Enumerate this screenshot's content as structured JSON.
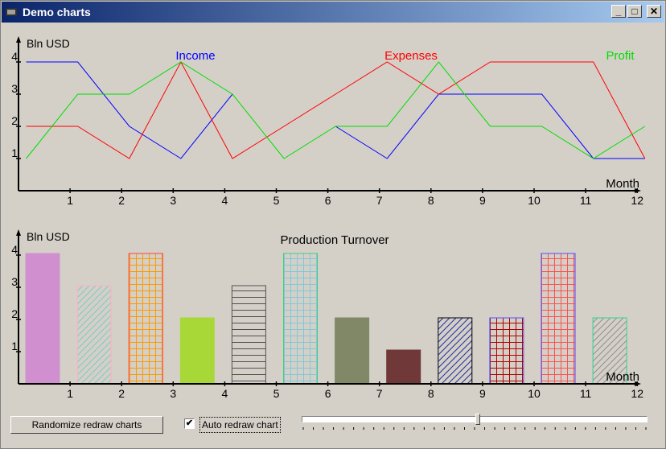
{
  "window": {
    "title": "Demo charts",
    "buttons": {
      "minimize": "_",
      "maximize": "□",
      "close": "✕"
    }
  },
  "controls": {
    "randomize_label": "Randomize redraw charts",
    "auto_redraw_label": "Auto redraw chart",
    "auto_redraw_checked": true,
    "check_mark": "✔",
    "slider_value": 0.51
  },
  "chart_data": [
    {
      "type": "line",
      "ylabel": "Bln USD",
      "xlabel": "Month",
      "x": [
        0,
        1,
        2,
        3,
        4,
        5,
        6,
        7,
        8,
        9,
        10,
        11,
        12
      ],
      "x_ticks": [
        1,
        2,
        3,
        4,
        5,
        6,
        7,
        8,
        9,
        10,
        11,
        12
      ],
      "y_ticks": [
        1,
        2,
        3,
        4
      ],
      "ylim": [
        0,
        4.8
      ],
      "xlim": [
        0,
        12
      ],
      "series": [
        {
          "name": "Income",
          "color": "#0000ff",
          "values": [
            4,
            4,
            2,
            1,
            3,
            null,
            2,
            1,
            3,
            3,
            3,
            1,
            1
          ]
        },
        {
          "name": "Expenses",
          "color": "#ff0000",
          "values": [
            2,
            2,
            1,
            4,
            1,
            2,
            3,
            4,
            3,
            4,
            4,
            4,
            1
          ]
        },
        {
          "name": "Profit",
          "color": "#00dd00",
          "values": [
            1,
            3,
            3,
            4,
            3,
            1,
            2,
            2,
            4,
            2,
            2,
            1,
            2
          ]
        }
      ]
    },
    {
      "type": "bar",
      "title": "Production Turnover",
      "ylabel": "Bln USD",
      "xlabel": "Month",
      "x_ticks": [
        1,
        2,
        3,
        4,
        5,
        6,
        7,
        8,
        9,
        10,
        11,
        12
      ],
      "y_ticks": [
        1,
        2,
        3,
        4
      ],
      "ylim": [
        0,
        4.8
      ],
      "categories": [
        1,
        2,
        3,
        4,
        5,
        6,
        7,
        8,
        9,
        10,
        11,
        12
      ],
      "values": [
        4,
        3,
        4,
        2,
        3,
        4,
        2,
        1,
        2,
        2,
        4,
        2
      ],
      "bars": [
        {
          "fill": "#d090d0",
          "stroke": "#d090d0",
          "pattern": "solid"
        },
        {
          "fill": "#d4d0c8",
          "stroke": "#ffb0c0",
          "pattern": "diag",
          "hatch": "#80c8c8"
        },
        {
          "fill": "#d4d0c8",
          "stroke": "#ff4040",
          "pattern": "grid",
          "hatch": "#ff9900"
        },
        {
          "fill": "#a8d838",
          "stroke": "#a8d838",
          "pattern": "solid"
        },
        {
          "fill": "#d4d0c8",
          "stroke": "#505050",
          "pattern": "horiz",
          "hatch": "#505050"
        },
        {
          "fill": "#d4d0c8",
          "stroke": "#40d080",
          "pattern": "grid",
          "hatch": "#80c8d8"
        },
        {
          "fill": "#808868",
          "stroke": "#808868",
          "pattern": "solid"
        },
        {
          "fill": "#703838",
          "stroke": "#703838",
          "pattern": "solid"
        },
        {
          "fill": "#d4d0c8",
          "stroke": "#000000",
          "pattern": "diag",
          "hatch": "#2030a0"
        },
        {
          "fill": "#d4d0c8",
          "stroke": "#5050ff",
          "pattern": "grid",
          "hatch": "#b00000"
        },
        {
          "fill": "#d4d0c8",
          "stroke": "#5050ff",
          "pattern": "grid",
          "hatch": "#ff5050"
        },
        {
          "fill": "#d4d0c8",
          "stroke": "#30d090",
          "pattern": "diag",
          "hatch": "#909090"
        }
      ]
    }
  ]
}
